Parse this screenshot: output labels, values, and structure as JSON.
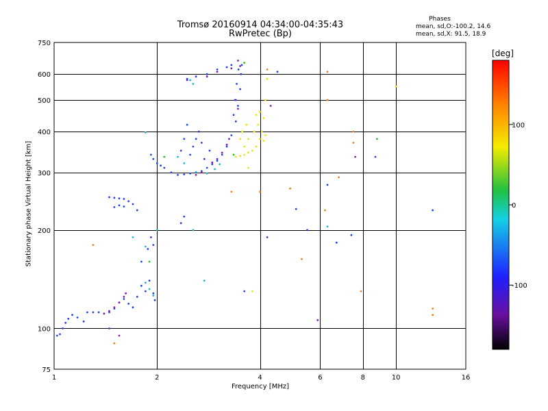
{
  "chart_data": {
    "type": "scatter",
    "title": "Tromsø 20160914 04:34:00-04:35:43",
    "subtitle": "RwPretec (Bp)",
    "xlabel": "Frequency [MHz]",
    "ylabel": "Stationary phase Virtual Height [km]",
    "xscale": "log",
    "yscale": "log",
    "xlim": [
      1,
      16
    ],
    "ylim": [
      75,
      750
    ],
    "xticks": [
      1,
      2,
      4,
      6,
      8,
      10,
      16
    ],
    "yticks": [
      75,
      100,
      200,
      300,
      400,
      500,
      600,
      750
    ],
    "grid": true,
    "phases": {
      "title": "Phases",
      "o_stats": "mean, sd,O:-100.2, 14.6",
      "x_stats": "mean, sd,X:  91.5, 18.9"
    },
    "colorbar": {
      "label": "[deg]",
      "range": [
        -180,
        180
      ],
      "ticks": [
        -100,
        0,
        100
      ]
    },
    "colors": {
      "violet": "#7a1fb2",
      "blue": "#1f3ff0",
      "cyan": "#17b8d8",
      "green": "#20c020",
      "yellow": "#f5e100",
      "orange": "#f08020",
      "red": "#ff1010"
    },
    "series": [
      {
        "color": "blue",
        "points": [
          [
            1.02,
            95
          ],
          [
            1.04,
            96
          ],
          [
            1.06,
            100
          ],
          [
            1.08,
            104
          ],
          [
            1.1,
            107
          ],
          [
            1.13,
            110
          ],
          [
            1.17,
            108
          ],
          [
            1.22,
            105
          ],
          [
            1.25,
            112
          ],
          [
            1.3,
            112
          ],
          [
            1.35,
            112
          ],
          [
            1.4,
            111
          ],
          [
            1.45,
            112
          ],
          [
            1.5,
            115
          ],
          [
            1.55,
            120
          ],
          [
            1.6,
            123
          ],
          [
            1.65,
            119
          ],
          [
            1.7,
            116
          ],
          [
            1.75,
            125
          ],
          [
            1.8,
            135
          ],
          [
            1.85,
            130
          ],
          [
            1.9,
            140
          ],
          [
            1.95,
            128
          ],
          [
            1.97,
            122
          ],
          [
            1.8,
            160
          ],
          [
            1.88,
            175
          ],
          [
            1.92,
            190
          ],
          [
            1.95,
            180
          ],
          [
            1.45,
            252
          ],
          [
            1.5,
            251
          ],
          [
            1.55,
            250
          ],
          [
            1.6,
            249
          ],
          [
            1.65,
            245
          ],
          [
            1.7,
            240
          ],
          [
            1.75,
            230
          ],
          [
            1.5,
            235
          ],
          [
            1.55,
            238
          ],
          [
            1.6,
            236
          ],
          [
            1.92,
            340
          ],
          [
            1.95,
            330
          ],
          [
            2.0,
            320
          ],
          [
            2.05,
            315
          ],
          [
            2.1,
            310
          ],
          [
            2.2,
            300
          ],
          [
            2.3,
            295
          ],
          [
            2.4,
            296
          ],
          [
            2.5,
            298
          ],
          [
            2.6,
            300
          ],
          [
            2.7,
            303
          ],
          [
            2.8,
            310
          ],
          [
            2.9,
            318
          ],
          [
            3.0,
            326
          ],
          [
            3.1,
            340
          ],
          [
            3.2,
            360
          ],
          [
            3.3,
            390
          ],
          [
            3.4,
            430
          ],
          [
            3.45,
            480
          ],
          [
            3.5,
            540
          ],
          [
            3.52,
            600
          ],
          [
            3.54,
            640
          ],
          [
            2.45,
            580
          ],
          [
            2.6,
            590
          ],
          [
            2.8,
            600
          ],
          [
            3.0,
            620
          ],
          [
            3.2,
            630
          ],
          [
            3.3,
            640
          ],
          [
            2.35,
            350
          ],
          [
            2.4,
            380
          ],
          [
            2.45,
            420
          ],
          [
            2.5,
            340
          ],
          [
            2.55,
            360
          ],
          [
            2.6,
            380
          ],
          [
            2.65,
            400
          ],
          [
            2.7,
            370
          ],
          [
            2.75,
            330
          ],
          [
            2.85,
            350
          ],
          [
            2.35,
            210
          ],
          [
            2.4,
            220
          ],
          [
            3.35,
            450
          ],
          [
            3.38,
            500
          ],
          [
            3.42,
            560
          ],
          [
            3.46,
            620
          ],
          [
            3.6,
            130
          ],
          [
            4.5,
            610
          ],
          [
            5.1,
            232
          ],
          [
            5.5,
            200
          ],
          [
            6.3,
            275
          ],
          [
            6.7,
            183
          ],
          [
            7.4,
            193
          ],
          [
            8.7,
            335
          ],
          [
            12.8,
            230
          ],
          [
            4.2,
            190
          ]
        ]
      },
      {
        "color": "violet",
        "points": [
          [
            1.45,
            100
          ],
          [
            1.55,
            95
          ],
          [
            1.4,
            111
          ],
          [
            1.45,
            113
          ],
          [
            1.5,
            116
          ],
          [
            1.55,
            120
          ],
          [
            1.6,
            125
          ],
          [
            1.62,
            128
          ],
          [
            2.45,
            575
          ],
          [
            2.8,
            590
          ],
          [
            3.0,
            610
          ],
          [
            3.3,
            625
          ],
          [
            3.45,
            660
          ],
          [
            3.5,
            635
          ],
          [
            3.4,
            500
          ],
          [
            3.45,
            470
          ],
          [
            3.0,
            330
          ],
          [
            3.1,
            345
          ],
          [
            3.2,
            365
          ],
          [
            3.25,
            380
          ],
          [
            2.9,
            322
          ],
          [
            4.3,
            480
          ],
          [
            5.9,
            106
          ],
          [
            7.6,
            335
          ],
          [
            2.6,
            295
          ],
          [
            2.7,
            300
          ]
        ]
      },
      {
        "color": "cyan",
        "points": [
          [
            2.5,
            575
          ],
          [
            2.55,
            560
          ],
          [
            1.85,
            398
          ],
          [
            2.3,
            335
          ],
          [
            2.4,
            320
          ],
          [
            2.6,
            301
          ],
          [
            2.8,
            298
          ],
          [
            2.95,
            307
          ],
          [
            3.05,
            318
          ],
          [
            2.75,
            140
          ],
          [
            1.95,
            126
          ],
          [
            1.9,
            132
          ],
          [
            1.85,
            178
          ],
          [
            1.7,
            190
          ],
          [
            1.85,
            138
          ],
          [
            2.0,
            200
          ],
          [
            2.55,
            200
          ],
          [
            6.3,
            205
          ]
        ]
      },
      {
        "color": "green",
        "points": [
          [
            3.6,
            650
          ],
          [
            1.9,
            160
          ],
          [
            8.8,
            380
          ],
          [
            2.1,
            335
          ],
          [
            3.35,
            340
          ]
        ]
      },
      {
        "color": "yellow",
        "points": [
          [
            3.4,
            335
          ],
          [
            3.5,
            337
          ],
          [
            3.6,
            340
          ],
          [
            3.7,
            345
          ],
          [
            3.8,
            350
          ],
          [
            3.9,
            360
          ],
          [
            4.0,
            380
          ],
          [
            4.05,
            400
          ],
          [
            4.1,
            440
          ],
          [
            4.15,
            500
          ],
          [
            4.2,
            580
          ],
          [
            3.9,
            450
          ],
          [
            3.95,
            420
          ],
          [
            3.85,
            400
          ],
          [
            4.0,
            460
          ],
          [
            3.7,
            380
          ],
          [
            3.6,
            360
          ],
          [
            3.65,
            420
          ],
          [
            3.55,
            400
          ],
          [
            3.5,
            380
          ],
          [
            4.1,
            375
          ],
          [
            4.15,
            390
          ],
          [
            3.8,
            130
          ],
          [
            10.0,
            550
          ],
          [
            3.7,
            310
          ]
        ]
      },
      {
        "color": "orange",
        "points": [
          [
            1.3,
            180
          ],
          [
            1.5,
            90
          ],
          [
            6.3,
            610
          ],
          [
            6.3,
            500
          ],
          [
            7.5,
            400
          ],
          [
            7.5,
            370
          ],
          [
            6.8,
            290
          ],
          [
            3.3,
            262
          ],
          [
            5.3,
            163
          ],
          [
            7.9,
            130
          ],
          [
            12.8,
            115
          ],
          [
            12.8,
            110
          ],
          [
            4.0,
            262
          ],
          [
            4.9,
            268
          ],
          [
            6.2,
            230
          ],
          [
            6.3,
            500
          ],
          [
            4.2,
            620
          ]
        ]
      }
    ]
  }
}
